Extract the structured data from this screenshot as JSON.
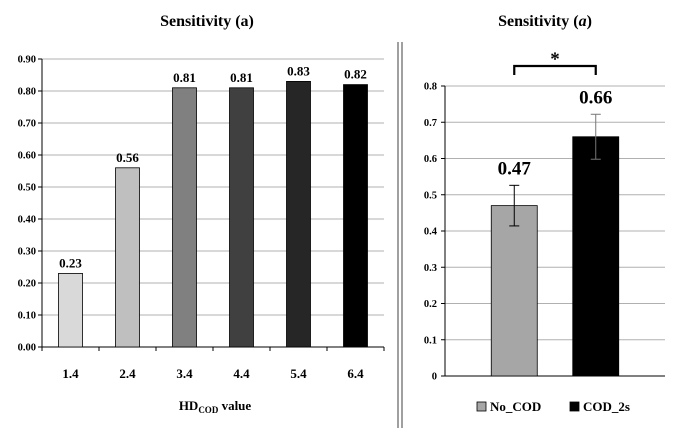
{
  "chart_data": [
    {
      "type": "bar",
      "title": "Sensitivity (a)",
      "xlabel": {
        "main": "HD",
        "sub": "COD",
        "suffix": " value"
      },
      "ylabel": "",
      "ylim": [
        0,
        0.9
      ],
      "yticks": [
        "0.00",
        "0.10",
        "0.20",
        "0.30",
        "0.40",
        "0.50",
        "0.60",
        "0.70",
        "0.80",
        "0.90"
      ],
      "grid": true,
      "categories": [
        "1.4",
        "2.4",
        "3.4",
        "4.4",
        "5.4",
        "6.4"
      ],
      "values": [
        0.23,
        0.56,
        0.81,
        0.81,
        0.83,
        0.82
      ],
      "data_labels": [
        "0.23",
        "0.56",
        "0.81",
        "0.81",
        "0.83",
        "0.82"
      ],
      "colors": [
        "#d9d9d9",
        "#bfbfbf",
        "#808080",
        "#404040",
        "#262626",
        "#000000"
      ]
    },
    {
      "type": "bar",
      "title_prefix": "Sensitivity (",
      "title_italic": "a",
      "title_suffix": ")",
      "ylim": [
        0,
        0.8
      ],
      "yticks": [
        "0",
        "0.1",
        "0.2",
        "0.3",
        "0.4",
        "0.5",
        "0.6",
        "0.7",
        "0.8"
      ],
      "grid": true,
      "series": [
        {
          "name": "No_COD",
          "value": 0.47,
          "label": "0.47",
          "error": 0.056,
          "color": "#a6a6a6"
        },
        {
          "name": "COD_2s",
          "value": 0.66,
          "label": "0.66",
          "error": 0.062,
          "color": "#000000"
        }
      ],
      "significance": "*",
      "legend": "bottom"
    }
  ]
}
